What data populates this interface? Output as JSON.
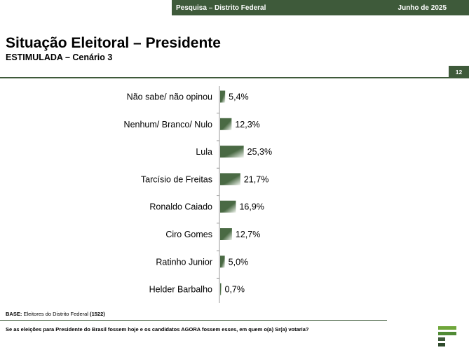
{
  "header": {
    "survey_label": "Pesquisa – Distrito Federal",
    "date_label": "Junho de 2025",
    "page_number": "12"
  },
  "title": "Situação Eleitoral – Presidente",
  "subtitle": "ESTIMULADA – Cenário 3",
  "footer": {
    "base_label": "BASE:",
    "base_text": "Eleitores do Distrito Federal",
    "base_n": "(1522)",
    "question": "Se as eleições para Presidente do Brasil fossem hoje e os candidatos AGORA fossem esses, em quem o(a) Sr(a) votaria?"
  },
  "colors": {
    "accent": "#3e5a3a",
    "bar_dark": "#4a6a44",
    "bar_light": "#f2f6f0"
  },
  "chart_data": {
    "type": "bar",
    "orientation": "horizontal",
    "categories": [
      "Não sabe/ não opinou",
      "Nenhum/ Branco/ Nulo",
      "Lula",
      "Tarcísio de Freitas",
      "Ronaldo Caiado",
      "Ciro Gomes",
      "Ratinho Junior",
      "Helder Barbalho"
    ],
    "values": [
      5.4,
      12.3,
      25.3,
      21.7,
      16.9,
      12.7,
      5.0,
      0.7
    ],
    "value_labels": [
      "5,4%",
      "12,3%",
      "25,3%",
      "21,7%",
      "16,9%",
      "12,7%",
      "5,0%",
      "0,7%"
    ],
    "unit": "%",
    "grid": false,
    "legend": "none"
  }
}
